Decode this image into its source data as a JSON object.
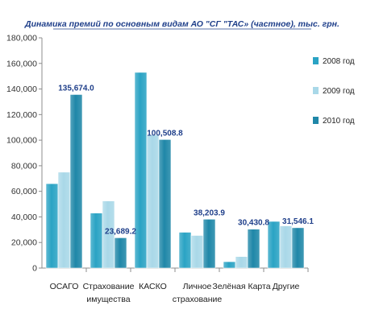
{
  "chart_data": {
    "type": "bar",
    "title": "Динамика премий по основным видам АО \"СГ \"ТАС» (частное), тыс. грн.",
    "categories": [
      [
        "ОСАГО"
      ],
      [
        "Страхование",
        "имущества"
      ],
      [
        "КАСКО"
      ],
      [
        "Личное",
        "страхование"
      ],
      [
        "Зелёная Карта"
      ],
      [
        "Другие"
      ]
    ],
    "series": [
      {
        "name": "2008 год",
        "values": [
          66000,
          43000,
          153000,
          28000,
          5000,
          36500
        ],
        "color": "#2aa3c4"
      },
      {
        "name": "2009 год",
        "values": [
          75000,
          52500,
          104000,
          25500,
          9000,
          33000
        ],
        "color": "#a9d8e8"
      },
      {
        "name": "2010 год",
        "values": [
          135674.0,
          23689.2,
          100508.8,
          38203.9,
          30430.8,
          31546.1
        ],
        "color": "#1f87a8"
      }
    ],
    "data_labels": [
      "135,674.0",
      "23,689.2",
      "100,508.8",
      "38,203.9",
      "30,430.8",
      "31,546.1"
    ],
    "ylim": [
      0,
      180000
    ],
    "yticks": [
      "0",
      "20,000",
      "40,000",
      "60,000",
      "80,000",
      "100,000",
      "120,000",
      "140,000",
      "160,000",
      "180,000"
    ],
    "grid": false,
    "legend_position": "right"
  }
}
